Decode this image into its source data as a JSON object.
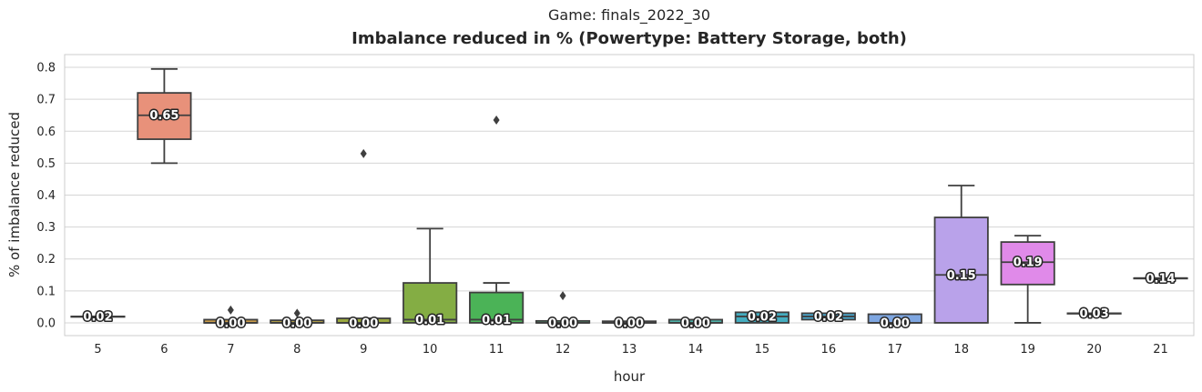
{
  "suptitle": "Game: finals_2022_30",
  "title": "Imbalance reduced in % (Powertype: Battery Storage, both)",
  "chart_data": {
    "type": "box",
    "title": "Imbalance reduced in % (Powertype: Battery Storage, both)",
    "xlabel": "hour",
    "ylabel": "% of imbalance reduced",
    "ylim": [
      -0.04,
      0.84
    ],
    "yticks": [
      0.0,
      0.1,
      0.2,
      0.3,
      0.4,
      0.5,
      0.6,
      0.7,
      0.8
    ],
    "ytick_labels": [
      "0.0",
      "0.1",
      "0.2",
      "0.3",
      "0.4",
      "0.5",
      "0.6",
      "0.7",
      "0.8"
    ],
    "grid": true,
    "categories": [
      "5",
      "6",
      "7",
      "8",
      "9",
      "10",
      "11",
      "12",
      "13",
      "14",
      "15",
      "16",
      "17",
      "18",
      "19",
      "20",
      "21"
    ],
    "boxes": [
      {
        "hour": "5",
        "color": "#f68c79",
        "whislo": 0.02,
        "q1": 0.02,
        "median": 0.02,
        "q3": 0.02,
        "whishi": 0.02,
        "fliers": [],
        "label": "0.02"
      },
      {
        "hour": "6",
        "color": "#e8917a",
        "whislo": 0.5,
        "q1": 0.575,
        "median": 0.65,
        "q3": 0.72,
        "whishi": 0.795,
        "fliers": [],
        "label": "0.65"
      },
      {
        "hour": "7",
        "color": "#c99b4a",
        "whislo": 0.0,
        "q1": 0.0,
        "median": 0.0,
        "q3": 0.01,
        "whishi": 0.01,
        "fliers": [
          0.04
        ],
        "label": "0.00"
      },
      {
        "hour": "8",
        "color": "#b3a14a",
        "whislo": 0.0,
        "q1": 0.0,
        "median": 0.0,
        "q3": 0.008,
        "whishi": 0.008,
        "fliers": [
          0.03
        ],
        "label": "0.00"
      },
      {
        "hour": "9",
        "color": "#9aa83e",
        "whislo": 0.0,
        "q1": 0.0,
        "median": 0.0,
        "q3": 0.014,
        "whishi": 0.014,
        "fliers": [
          0.53
        ],
        "label": "0.00"
      },
      {
        "hour": "10",
        "color": "#84ad44",
        "whislo": 0.0,
        "q1": 0.0,
        "median": 0.01,
        "q3": 0.125,
        "whishi": 0.295,
        "fliers": [],
        "label": "0.01"
      },
      {
        "hour": "11",
        "color": "#4bb357",
        "whislo": 0.0,
        "q1": 0.0,
        "median": 0.01,
        "q3": 0.095,
        "whishi": 0.125,
        "fliers": [
          0.635
        ],
        "label": "0.01"
      },
      {
        "hour": "12",
        "color": "#4fb47d",
        "whislo": 0.0,
        "q1": 0.0,
        "median": 0.0,
        "q3": 0.006,
        "whishi": 0.006,
        "fliers": [
          0.085
        ],
        "label": "0.00"
      },
      {
        "hour": "13",
        "color": "#52b298",
        "whislo": 0.0,
        "q1": 0.0,
        "median": 0.0,
        "q3": 0.005,
        "whishi": 0.005,
        "fliers": [],
        "label": "0.00"
      },
      {
        "hour": "14",
        "color": "#4fb1a8",
        "whislo": 0.0,
        "q1": 0.0,
        "median": 0.0,
        "q3": 0.01,
        "whishi": 0.01,
        "fliers": [],
        "label": "0.00"
      },
      {
        "hour": "15",
        "color": "#44adc0",
        "whislo": 0.0,
        "q1": 0.0,
        "median": 0.02,
        "q3": 0.033,
        "whishi": 0.033,
        "fliers": [],
        "label": "0.02"
      },
      {
        "hour": "16",
        "color": "#4aa8cf",
        "whislo": 0.01,
        "q1": 0.01,
        "median": 0.02,
        "q3": 0.03,
        "whishi": 0.03,
        "fliers": [],
        "label": "0.02"
      },
      {
        "hour": "17",
        "color": "#7ea6e1",
        "whislo": 0.0,
        "q1": 0.0,
        "median": 0.0,
        "q3": 0.027,
        "whishi": 0.027,
        "fliers": [],
        "label": "0.00"
      },
      {
        "hour": "18",
        "color": "#b9a2ea",
        "whislo": 0.0,
        "q1": 0.0,
        "median": 0.15,
        "q3": 0.33,
        "whishi": 0.43,
        "fliers": [],
        "label": "0.15"
      },
      {
        "hour": "19",
        "color": "#e08ae9",
        "whislo": 0.0,
        "q1": 0.12,
        "median": 0.19,
        "q3": 0.253,
        "whishi": 0.273,
        "fliers": [],
        "label": "0.19"
      },
      {
        "hour": "20",
        "color": "#ea8ac4",
        "whislo": 0.03,
        "q1": 0.03,
        "median": 0.03,
        "q3": 0.03,
        "whishi": 0.03,
        "fliers": [],
        "label": "0.03"
      },
      {
        "hour": "21",
        "color": "#f590a9",
        "whislo": 0.14,
        "q1": 0.14,
        "median": 0.14,
        "q3": 0.14,
        "whishi": 0.14,
        "fliers": [],
        "label": "0.14"
      }
    ]
  }
}
